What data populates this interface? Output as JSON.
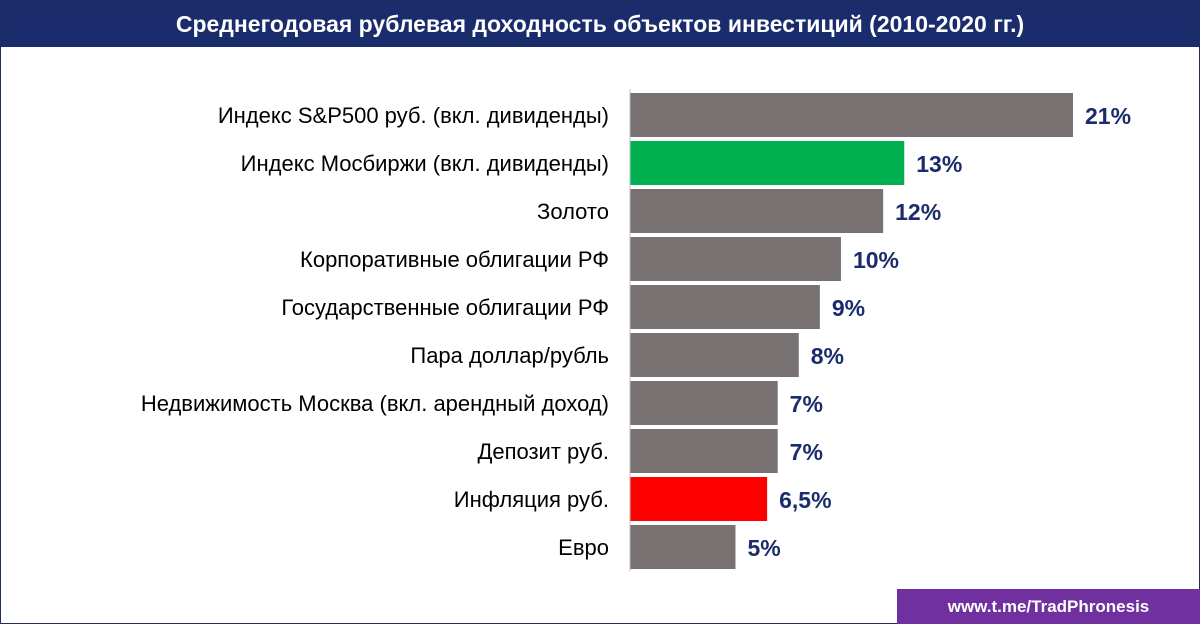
{
  "colors": {
    "title_bg": "#1a2c6b",
    "bar_default": "#777171",
    "bar_highlight": "#00b050",
    "bar_inflation": "#ff0000",
    "value_text": "#1a2c6b",
    "footer_bg": "#7030a0"
  },
  "footer": {
    "link_text": "www.t.me/TradPhronesis"
  },
  "chart_data": {
    "type": "bar",
    "orientation": "horizontal",
    "title": "Среднегодовая рублевая доходность объектов инвестиций (2010-2020 гг.)",
    "xlabel": "",
    "ylabel": "",
    "xlim": [
      0,
      21
    ],
    "grid": false,
    "legend": "none",
    "categories": [
      "Индекс S&P500 руб. (вкл. дивиденды)",
      "Индекс Мосбиржи (вкл. дивиденды)",
      "Золото",
      "Корпоративные облигации РФ",
      "Государственные облигации РФ",
      "Пара доллар/рубль",
      "Недвижимость Москва (вкл. арендный доход)",
      "Депозит руб.",
      "Инфляция руб.",
      "Евро"
    ],
    "values": [
      21,
      13,
      12,
      10,
      9,
      8,
      7,
      7,
      6.5,
      5
    ],
    "value_labels": [
      "21%",
      "13%",
      "12%",
      "10%",
      "9%",
      "8%",
      "7%",
      "7%",
      "6,5%",
      "5%"
    ],
    "bar_colors": [
      "#777171",
      "#00b050",
      "#777171",
      "#777171",
      "#777171",
      "#777171",
      "#777171",
      "#777171",
      "#ff0000",
      "#777171"
    ]
  }
}
